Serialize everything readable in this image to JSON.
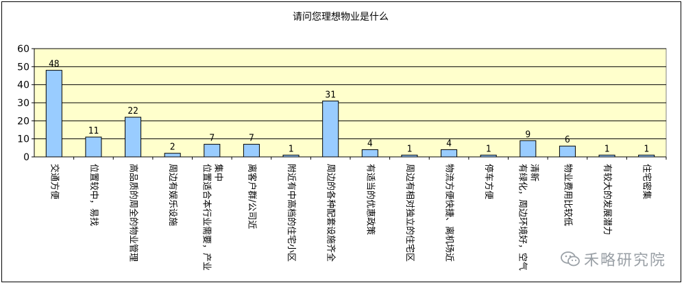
{
  "chart_data": {
    "type": "bar",
    "title": "请问您理想物业是什么",
    "categories": [
      "交通方便",
      "位置较中，易找",
      "高品质的周全的物业管理",
      "周边有娱乐设施",
      "位置适合本行业需要，产业集中",
      "离客户群/公司近",
      "附近有中高档的住宅小区",
      "周边的各种配套设施齐全",
      "有适当的优惠政策",
      "周边有相对独立的住宅区",
      "物流方便快捷、离机场近",
      "停车方便",
      "有绿化，周边环境好，空气清新",
      "物业费用比较低",
      "有较大的发展潜力",
      "住宅密集"
    ],
    "values": [
      48,
      11,
      22,
      2,
      7,
      7,
      1,
      31,
      4,
      1,
      4,
      1,
      9,
      6,
      1,
      1
    ],
    "ylim": [
      0,
      60
    ],
    "yticks": [
      0,
      10,
      20,
      30,
      40,
      50,
      60
    ],
    "grid": true,
    "legend": "none",
    "colors": {
      "bar": "#99ccff",
      "bar_edge": "#000000",
      "plot_bg": "#ffffcc",
      "grid": "#000000"
    }
  },
  "watermark": {
    "text": "禾略研究院",
    "icon": "wechat-icon"
  }
}
